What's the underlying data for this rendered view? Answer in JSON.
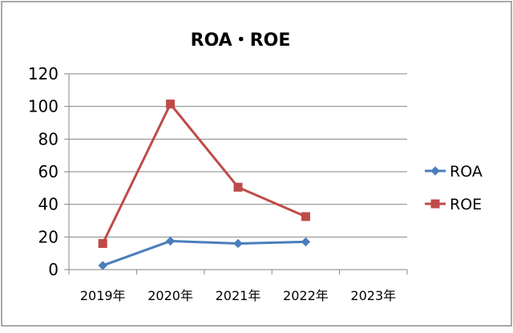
{
  "chart_data": {
    "type": "line",
    "title": "ROA・ROE",
    "xlabel": "",
    "ylabel": "",
    "categories": [
      "2019年",
      "2020年",
      "2021年",
      "2022年",
      "2023年"
    ],
    "ylim": [
      0,
      120
    ],
    "yticks": [
      0,
      20,
      40,
      60,
      80,
      100,
      120
    ],
    "grid": true,
    "legend_position": "right",
    "series": [
      {
        "name": "ROA",
        "color": "#4a7ebb",
        "marker": "diamond",
        "values": [
          2.5,
          17.5,
          16,
          17,
          null
        ]
      },
      {
        "name": "ROE",
        "color": "#be4b48",
        "marker": "square",
        "values": [
          16,
          101.5,
          50.5,
          32.5,
          null
        ]
      }
    ]
  }
}
